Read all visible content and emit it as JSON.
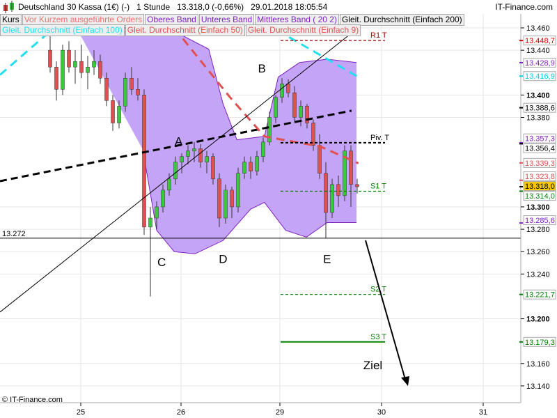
{
  "header": {
    "title": "Deutschland 30 Kassa (1€) (-)   1 Stunde   13.318,0 (-0,66%)   29.01.2018 18:05:54",
    "brand": "IT-Finance.com"
  },
  "legend_row1": [
    {
      "label": "Kurs",
      "color": "#000000"
    },
    {
      "label": "Vor Kurzem ausgeführte Orders",
      "color": "#f07070"
    },
    {
      "label": "Oberes Band",
      "color": "#8020c0"
    },
    {
      "label": "Unteres Band",
      "color": "#8020c0"
    },
    {
      "label": "Mittleres Band ( 20 2)",
      "color": "#8020c0"
    },
    {
      "label": "Gleit. Durchschnitt (Einfach 200)",
      "color": "#000000"
    }
  ],
  "legend_row2": [
    {
      "label": "Gleit. Durchschnitt (Einfach 100)",
      "color": "#20e0f0"
    },
    {
      "label": "Gleit. Durchschnitt (Einfach 50)",
      "color": "#e05050"
    },
    {
      "label": "Gleit. Durchschnitt (Einfach 9)",
      "color": "#e05050"
    }
  ],
  "copyright": "© IT-Finance.com",
  "chart_data": {
    "type": "candlestick",
    "xlabels": [
      "25",
      "26",
      "29",
      "30",
      "31"
    ],
    "ylim": [
      13130,
      13472
    ],
    "yticks": [
      {
        "v": 13460,
        "t": "13.460"
      },
      {
        "v": 13440,
        "t": "13.440"
      },
      {
        "v": 13400,
        "t": "13.400",
        "bold": true
      },
      {
        "v": 13380,
        "t": "13.380"
      },
      {
        "v": 13300,
        "t": "13.300",
        "bold": true
      },
      {
        "v": 13280,
        "t": "13.280"
      },
      {
        "v": 13260,
        "t": "13.260"
      },
      {
        "v": 13240,
        "t": "13.240"
      },
      {
        "v": 13200,
        "t": "13.200",
        "bold": true
      },
      {
        "v": 13160,
        "t": "13.160"
      },
      {
        "v": 13140,
        "t": "13.140"
      }
    ],
    "price_tags": [
      {
        "v": 13448.7,
        "t": "13.448,7",
        "color": "#e00000"
      },
      {
        "v": 13428.9,
        "t": "13.428,9",
        "color": "#8020c0"
      },
      {
        "v": 13416.9,
        "t": "13.416,9",
        "color": "#00d0e0"
      },
      {
        "v": 13388.6,
        "t": "13.388,6",
        "color": "#000000"
      },
      {
        "v": 13357.3,
        "t": "13.357,3",
        "color": "#8020c0"
      },
      {
        "v": 13356.4,
        "t": "13.356,4",
        "color": "#000000"
      },
      {
        "v": 13339.3,
        "t": "13.339,3",
        "color": "#e05050"
      },
      {
        "v": 13323.8,
        "t": "13.323,8",
        "color": "#e05050"
      },
      {
        "v": 13318.0,
        "t": "13.318,0",
        "color": "#000000",
        "bg": "#f8c800"
      },
      {
        "v": 13314.0,
        "t": "13.314,0",
        "color": "#008000"
      },
      {
        "v": 13285.6,
        "t": "13.285,6",
        "color": "#8020c0"
      },
      {
        "v": 13221.7,
        "t": "13.221,7",
        "color": "#008000"
      },
      {
        "v": 13179.3,
        "t": "13.179,3",
        "color": "#008000"
      }
    ],
    "candles": [
      [
        13440,
        13458,
        13420,
        13425
      ],
      [
        13425,
        13430,
        13395,
        13405
      ],
      [
        13405,
        13445,
        13400,
        13440
      ],
      [
        13440,
        13448,
        13420,
        13425
      ],
      [
        13425,
        13440,
        13410,
        13430
      ],
      [
        13430,
        13445,
        13415,
        13420
      ],
      [
        13420,
        13435,
        13405,
        13425
      ],
      [
        13425,
        13440,
        13418,
        13430
      ],
      [
        13430,
        13436,
        13410,
        13415
      ],
      [
        13415,
        13420,
        13390,
        13395
      ],
      [
        13395,
        13400,
        13368,
        13375
      ],
      [
        13375,
        13395,
        13370,
        13390
      ],
      [
        13390,
        13420,
        13385,
        13415
      ],
      [
        13415,
        13425,
        13400,
        13405
      ],
      [
        13405,
        13415,
        13395,
        13400
      ],
      [
        13400,
        13405,
        13275,
        13282
      ],
      [
        13282,
        13300,
        13220,
        13290
      ],
      [
        13290,
        13305,
        13280,
        13300
      ],
      [
        13300,
        13320,
        13295,
        13315
      ],
      [
        13315,
        13330,
        13310,
        13325
      ],
      [
        13325,
        13345,
        13320,
        13340
      ],
      [
        13340,
        13348,
        13330,
        13345
      ],
      [
        13345,
        13355,
        13338,
        13350
      ],
      [
        13350,
        13358,
        13340,
        13352
      ],
      [
        13352,
        13356,
        13335,
        13340
      ],
      [
        13340,
        13350,
        13330,
        13345
      ],
      [
        13345,
        13348,
        13320,
        13325
      ],
      [
        13325,
        13330,
        13282,
        13290
      ],
      [
        13290,
        13320,
        13285,
        13315
      ],
      [
        13315,
        13318,
        13290,
        13300
      ],
      [
        13300,
        13335,
        13295,
        13330
      ],
      [
        13330,
        13345,
        13325,
        13340
      ],
      [
        13340,
        13345,
        13325,
        13332
      ],
      [
        13332,
        13350,
        13328,
        13345
      ],
      [
        13345,
        13362,
        13340,
        13358
      ],
      [
        13358,
        13385,
        13355,
        13380
      ],
      [
        13380,
        13400,
        13375,
        13398
      ],
      [
        13398,
        13415,
        13393,
        13410
      ],
      [
        13410,
        13414,
        13398,
        13402
      ],
      [
        13402,
        13408,
        13375,
        13380
      ],
      [
        13380,
        13395,
        13372,
        13390
      ],
      [
        13390,
        13392,
        13370,
        13375
      ],
      [
        13375,
        13378,
        13350,
        13355
      ],
      [
        13355,
        13365,
        13325,
        13330
      ],
      [
        13330,
        13340,
        13272,
        13295
      ],
      [
        13295,
        13325,
        13290,
        13320
      ],
      [
        13320,
        13328,
        13300,
        13310
      ],
      [
        13310,
        13355,
        13305,
        13350
      ],
      [
        13350,
        13355,
        13300,
        13320
      ],
      [
        13320,
        13325,
        13312,
        13318
      ]
    ],
    "upper_band": [
      [
        4.2,
        13460
      ],
      [
        14.2,
        13460
      ],
      [
        19.8,
        13457
      ],
      [
        25.3,
        13441
      ],
      [
        27.6,
        13392
      ],
      [
        29.8,
        13360
      ],
      [
        34.2,
        13363
      ],
      [
        36.4,
        13416
      ],
      [
        39.8,
        13429
      ],
      [
        44.2,
        13432
      ],
      [
        48.9,
        13429
      ]
    ],
    "lower_band": [
      [
        14.8,
        13351
      ],
      [
        17,
        13279
      ],
      [
        19.8,
        13260
      ],
      [
        23.1,
        13258
      ],
      [
        27.6,
        13270
      ],
      [
        32,
        13298
      ],
      [
        34.2,
        13304
      ],
      [
        37.6,
        13279
      ],
      [
        40.9,
        13273
      ],
      [
        44.2,
        13286
      ],
      [
        48.9,
        13286
      ]
    ],
    "ma200": [
      [
        -8,
        13323
      ],
      [
        48.1,
        13386
      ]
    ],
    "ma100": [
      [
        -8,
        13418
      ],
      [
        -0.2,
        13456
      ],
      [
        36.8,
        13456
      ],
      [
        49.2,
        13416
      ]
    ],
    "ma50": [
      [
        19.8,
        13460
      ],
      [
        28.7,
        13398
      ],
      [
        34.2,
        13363
      ],
      [
        43.1,
        13354
      ],
      [
        49.2,
        13339
      ]
    ],
    "trendline": [
      [
        -8,
        13206
      ],
      [
        48.7,
        13458
      ]
    ],
    "support_line": {
      "v": 13272,
      "t": "13.272"
    },
    "pivots": [
      {
        "t": "R1 T",
        "v": 13448.7,
        "color": "#a00000",
        "style": "dash"
      },
      {
        "t": "Piv. T",
        "v": 13357.3,
        "color": "#000000",
        "style": "dash"
      },
      {
        "t": "S1 T",
        "v": 13314.0,
        "color": "#008000",
        "style": "dash"
      },
      {
        "t": "S2 T",
        "v": 13221.7,
        "color": "#008000",
        "style": "dash"
      },
      {
        "t": "S3 T",
        "v": 13179.3,
        "color": "#008000",
        "style": "solid"
      }
    ],
    "annotations": [
      {
        "t": "A",
        "i": 20.5,
        "v": 13355
      },
      {
        "t": "B",
        "i": 33.8,
        "v": 13420
      },
      {
        "t": "C",
        "i": 17.8,
        "v": 13247
      },
      {
        "t": "D",
        "i": 27.6,
        "v": 13250
      },
      {
        "t": "E",
        "i": 44.2,
        "v": 13250
      },
      {
        "t": "Ziel",
        "i": 51.5,
        "v": 13155
      }
    ]
  }
}
